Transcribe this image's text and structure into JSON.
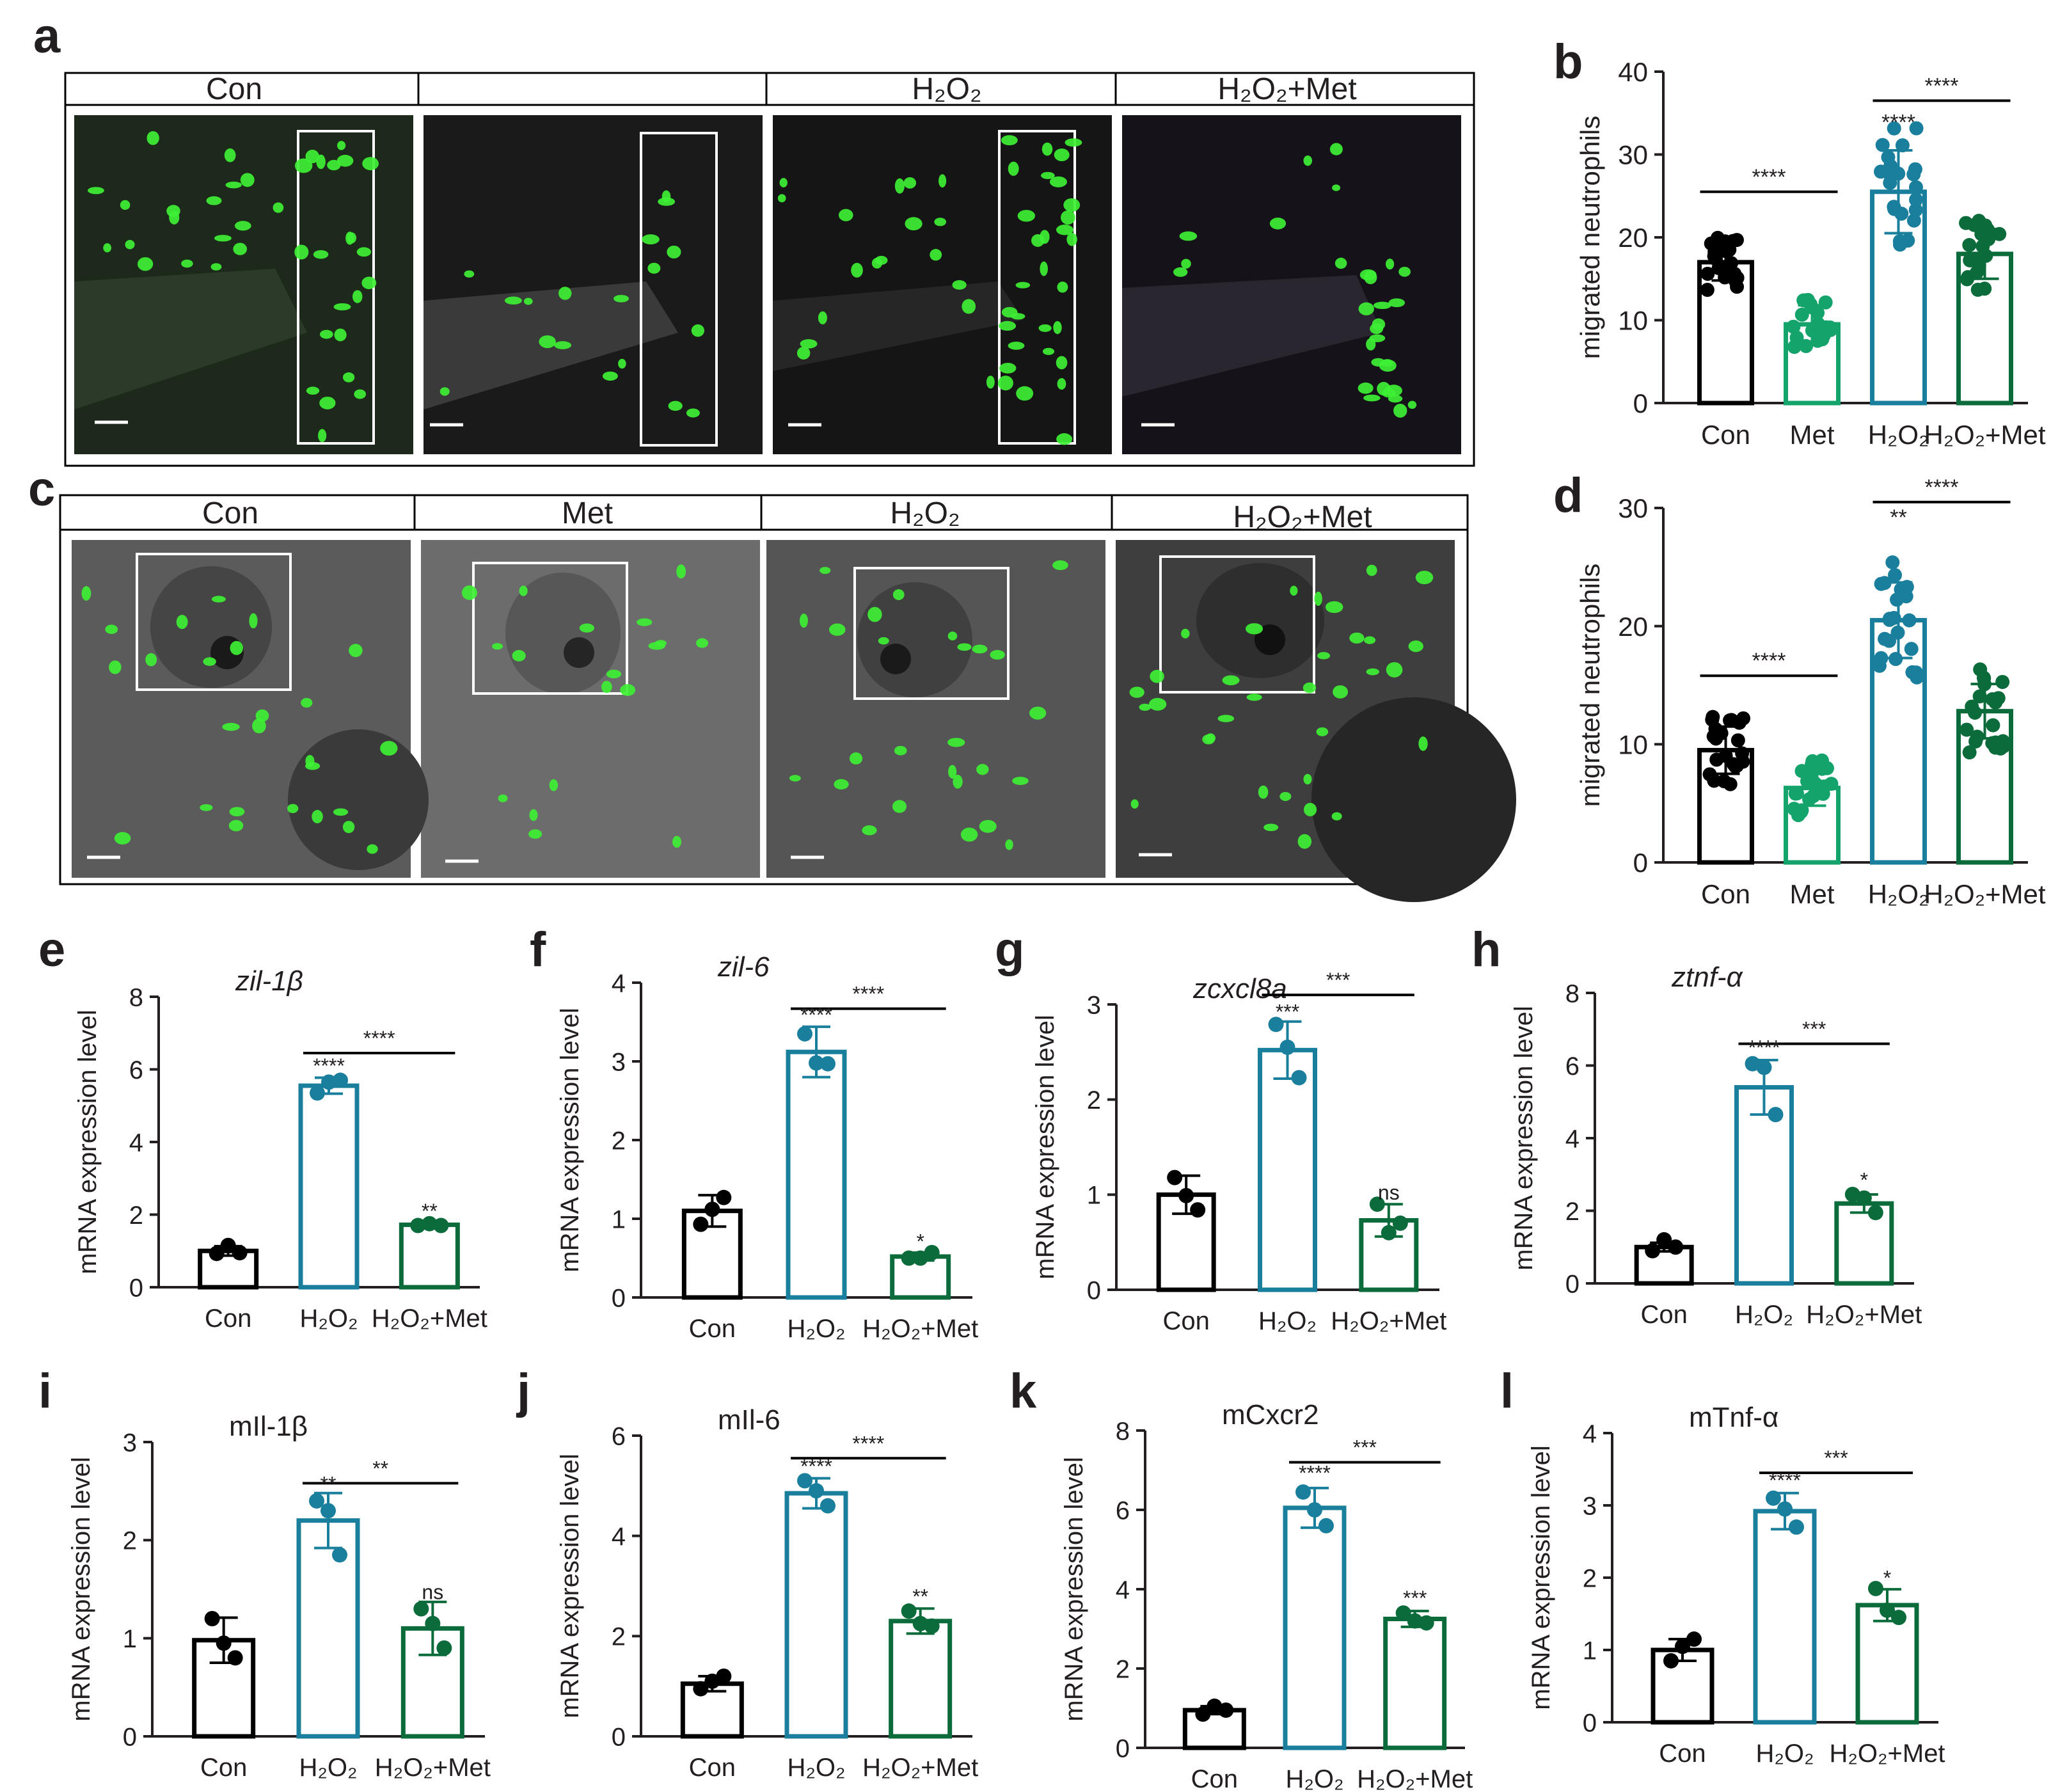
{
  "panel_labels": [
    "a",
    "b",
    "c",
    "d",
    "e",
    "f",
    "g",
    "h",
    "i",
    "j",
    "k",
    "l"
  ],
  "colors": {
    "con": "#000000",
    "met": "#13a36b",
    "h2o2": "#1a7f9c",
    "h2o2met": "#0b6b3a",
    "fluor": "#3ef034",
    "box": "#ffffff",
    "text": "#231f20"
  },
  "image_panels": [
    {
      "id": "a",
      "headers": [
        "Con",
        "",
        "H₂O₂",
        "H₂O₂+Met"
      ]
    },
    {
      "id": "c",
      "headers": [
        "Con",
        "Met",
        "H₂O₂",
        "H₂O₂+Met"
      ]
    }
  ],
  "chart_data": [
    {
      "id": "b",
      "type": "bar",
      "categories": [
        "Con",
        "Met",
        "H₂O₂",
        "H₂O₂+Met"
      ],
      "values": [
        17,
        9.5,
        25.5,
        18
      ],
      "errors": [
        2.2,
        2.3,
        5.0,
        3.0
      ],
      "ylabel": "migrated neutrophils",
      "ylim": [
        0,
        40
      ],
      "yticks": [
        0,
        10,
        20,
        30,
        40
      ],
      "point_style": "filled",
      "annotations": [
        {
          "type": "bracket",
          "from": 0,
          "to": 1,
          "y": 25.5,
          "text": "****"
        },
        {
          "type": "bracket",
          "from": 2,
          "to": 3,
          "y": 36.5,
          "text": "****"
        },
        {
          "type": "label",
          "at": 2,
          "y": 33,
          "text": "****"
        }
      ]
    },
    {
      "id": "d",
      "type": "bar",
      "categories": [
        "Con",
        "Met",
        "H₂O₂",
        "H₂O₂+Met"
      ],
      "values": [
        9.5,
        6.3,
        20.5,
        12.8
      ],
      "errors": [
        2.0,
        1.5,
        3.2,
        2.3
      ],
      "ylabel": "migrated neutrophils",
      "ylim": [
        0,
        30
      ],
      "yticks": [
        0,
        10,
        20,
        30
      ],
      "point_style": "filled",
      "annotations": [
        {
          "type": "bracket",
          "from": 0,
          "to": 1,
          "y": 15.8,
          "text": "****"
        },
        {
          "type": "bracket",
          "from": 2,
          "to": 3,
          "y": 30.5,
          "text": "****"
        },
        {
          "type": "label",
          "at": 2,
          "y": 28.6,
          "text": "**"
        }
      ]
    },
    {
      "id": "e",
      "type": "bar",
      "title": "zil-1β",
      "title_italic": true,
      "categories": [
        "Con",
        "H₂O₂",
        "H₂O₂+Met"
      ],
      "values": [
        1.0,
        5.55,
        1.72
      ],
      "errors": [
        0.13,
        0.22,
        0.05
      ],
      "points": [
        [
          0.93,
          1.15,
          0.95
        ],
        [
          5.35,
          5.65,
          5.7
        ],
        [
          1.7,
          1.75,
          1.7
        ]
      ],
      "ylabel": "mRNA expression level",
      "ylim": [
        0,
        8
      ],
      "yticks": [
        0,
        2,
        4,
        6,
        8
      ],
      "annotations": [
        {
          "type": "bracket",
          "from": 1,
          "to": 2,
          "y": 6.45,
          "text": "****"
        },
        {
          "type": "label",
          "at": 1,
          "y": 5.9,
          "text": "****"
        },
        {
          "type": "label",
          "at": 2,
          "y": 1.9,
          "text": "**"
        }
      ]
    },
    {
      "id": "f",
      "type": "bar",
      "title": "zil-6",
      "title_italic": true,
      "categories": [
        "Con",
        "H₂O₂",
        "H₂O₂+Met"
      ],
      "values": [
        1.1,
        3.12,
        0.52
      ],
      "errors": [
        0.2,
        0.32,
        0.05
      ],
      "points": [
        [
          0.93,
          1.12,
          1.27
        ],
        [
          3.35,
          2.98,
          2.97
        ],
        [
          0.5,
          0.5,
          0.57
        ]
      ],
      "ylabel": "mRNA expression level",
      "ylim": [
        0,
        4
      ],
      "yticks": [
        0,
        1,
        2,
        3,
        4
      ],
      "annotations": [
        {
          "type": "bracket",
          "from": 1,
          "to": 2,
          "y": 3.67,
          "text": "****"
        },
        {
          "type": "label",
          "at": 1,
          "y": 3.5,
          "text": "****"
        },
        {
          "type": "label",
          "at": 2,
          "y": 0.62,
          "text": "*"
        }
      ]
    },
    {
      "id": "g",
      "type": "bar",
      "title": "zcxcl8a",
      "title_italic": true,
      "categories": [
        "Con",
        "H₂O₂",
        "H₂O₂+Met"
      ],
      "values": [
        1.0,
        2.52,
        0.73
      ],
      "errors": [
        0.2,
        0.3,
        0.17
      ],
      "points": [
        [
          1.18,
          0.99,
          0.84
        ],
        [
          2.79,
          2.55,
          2.23
        ],
        [
          0.9,
          0.6,
          0.7
        ]
      ],
      "ylabel": "mRNA expression level",
      "ylim": [
        0,
        3
      ],
      "yticks": [
        0,
        1,
        2,
        3
      ],
      "annotations": [
        {
          "type": "bracket",
          "from": 1,
          "to": 2,
          "y": 3.1,
          "text": "***"
        },
        {
          "type": "label",
          "at": 1,
          "y": 2.85,
          "text": "***"
        },
        {
          "type": "label",
          "at": 2,
          "y": 0.95,
          "text": "ns"
        }
      ]
    },
    {
      "id": "h",
      "type": "bar",
      "title": "ztnf-α",
      "title_italic": true,
      "categories": [
        "Con",
        "H₂O₂",
        "H₂O₂+Met"
      ],
      "values": [
        1.0,
        5.4,
        2.2
      ],
      "errors": [
        0.12,
        0.75,
        0.25
      ],
      "points": [
        [
          0.9,
          1.2,
          1.0
        ],
        [
          6.05,
          5.95,
          4.65
        ],
        [
          2.45,
          2.35,
          1.95
        ]
      ],
      "ylabel": "mRNA expression level",
      "ylim": [
        0,
        8
      ],
      "yticks": [
        0,
        2,
        4,
        6,
        8
      ],
      "annotations": [
        {
          "type": "bracket",
          "from": 1,
          "to": 2,
          "y": 6.6,
          "text": "***"
        },
        {
          "type": "label",
          "at": 1,
          "y": 6.3,
          "text": "****"
        },
        {
          "type": "label",
          "at": 2,
          "y": 2.65,
          "text": "*"
        }
      ]
    },
    {
      "id": "i",
      "type": "bar",
      "title": "mIl-1β",
      "title_italic": false,
      "categories": [
        "Con",
        "H₂O₂",
        "H₂O₂+Met"
      ],
      "values": [
        0.98,
        2.2,
        1.1
      ],
      "errors": [
        0.23,
        0.28,
        0.27
      ],
      "points": [
        [
          1.2,
          0.95,
          0.8
        ],
        [
          2.4,
          2.3,
          1.85
        ],
        [
          1.3,
          1.15,
          0.9
        ]
      ],
      "ylabel": "mRNA expression level",
      "ylim": [
        0,
        3
      ],
      "yticks": [
        0,
        1,
        2,
        3
      ],
      "annotations": [
        {
          "type": "bracket",
          "from": 1,
          "to": 2,
          "y": 2.58,
          "text": "**"
        },
        {
          "type": "label",
          "at": 1,
          "y": 2.5,
          "text": "**"
        },
        {
          "type": "label",
          "at": 2,
          "y": 1.4,
          "text": "ns"
        }
      ]
    },
    {
      "id": "j",
      "type": "bar",
      "title": "mIl-6",
      "title_italic": false,
      "categories": [
        "Con",
        "H₂O₂",
        "H₂O₂+Met"
      ],
      "values": [
        1.05,
        4.85,
        2.3
      ],
      "errors": [
        0.15,
        0.3,
        0.25
      ],
      "points": [
        [
          0.95,
          1.1,
          1.2
        ],
        [
          5.1,
          4.9,
          4.6
        ],
        [
          2.5,
          2.25,
          2.2
        ]
      ],
      "ylabel": "mRNA expression level",
      "ylim": [
        0,
        6
      ],
      "yticks": [
        0,
        2,
        4,
        6
      ],
      "annotations": [
        {
          "type": "bracket",
          "from": 1,
          "to": 2,
          "y": 5.55,
          "text": "****"
        },
        {
          "type": "label",
          "at": 1,
          "y": 5.25,
          "text": "****"
        },
        {
          "type": "label",
          "at": 2,
          "y": 2.65,
          "text": "**"
        }
      ]
    },
    {
      "id": "k",
      "type": "bar",
      "title": "mCxcr2",
      "title_italic": false,
      "categories": [
        "Con",
        "H₂O₂",
        "H₂O₂+Met"
      ],
      "values": [
        0.95,
        6.05,
        3.25
      ],
      "errors": [
        0.1,
        0.5,
        0.2
      ],
      "points": [
        [
          0.85,
          1.05,
          0.95
        ],
        [
          6.45,
          6.0,
          5.6
        ],
        [
          3.4,
          3.2,
          3.15
        ]
      ],
      "ylabel": "mRNA expression level",
      "ylim": [
        0,
        8
      ],
      "yticks": [
        0,
        2,
        4,
        6,
        8
      ],
      "annotations": [
        {
          "type": "bracket",
          "from": 1,
          "to": 2,
          "y": 7.2,
          "text": "***"
        },
        {
          "type": "label",
          "at": 1,
          "y": 6.75,
          "text": "****"
        },
        {
          "type": "label",
          "at": 2,
          "y": 3.6,
          "text": "***"
        }
      ]
    },
    {
      "id": "l",
      "type": "bar",
      "title": "mTnf-α",
      "title_italic": false,
      "categories": [
        "Con",
        "H₂O₂",
        "H₂O₂+Met"
      ],
      "values": [
        1.0,
        2.92,
        1.62
      ],
      "errors": [
        0.15,
        0.25,
        0.22
      ],
      "points": [
        [
          0.85,
          1.05,
          1.15
        ],
        [
          3.1,
          2.95,
          2.7
        ],
        [
          1.85,
          1.55,
          1.45
        ]
      ],
      "ylabel": "mRNA expression level",
      "ylim": [
        0,
        4
      ],
      "yticks": [
        0,
        1,
        2,
        3,
        4
      ],
      "annotations": [
        {
          "type": "bracket",
          "from": 1,
          "to": 2,
          "y": 3.45,
          "text": "***"
        },
        {
          "type": "label",
          "at": 1,
          "y": 3.25,
          "text": "****"
        },
        {
          "type": "label",
          "at": 2,
          "y": 1.9,
          "text": "*"
        }
      ]
    }
  ]
}
